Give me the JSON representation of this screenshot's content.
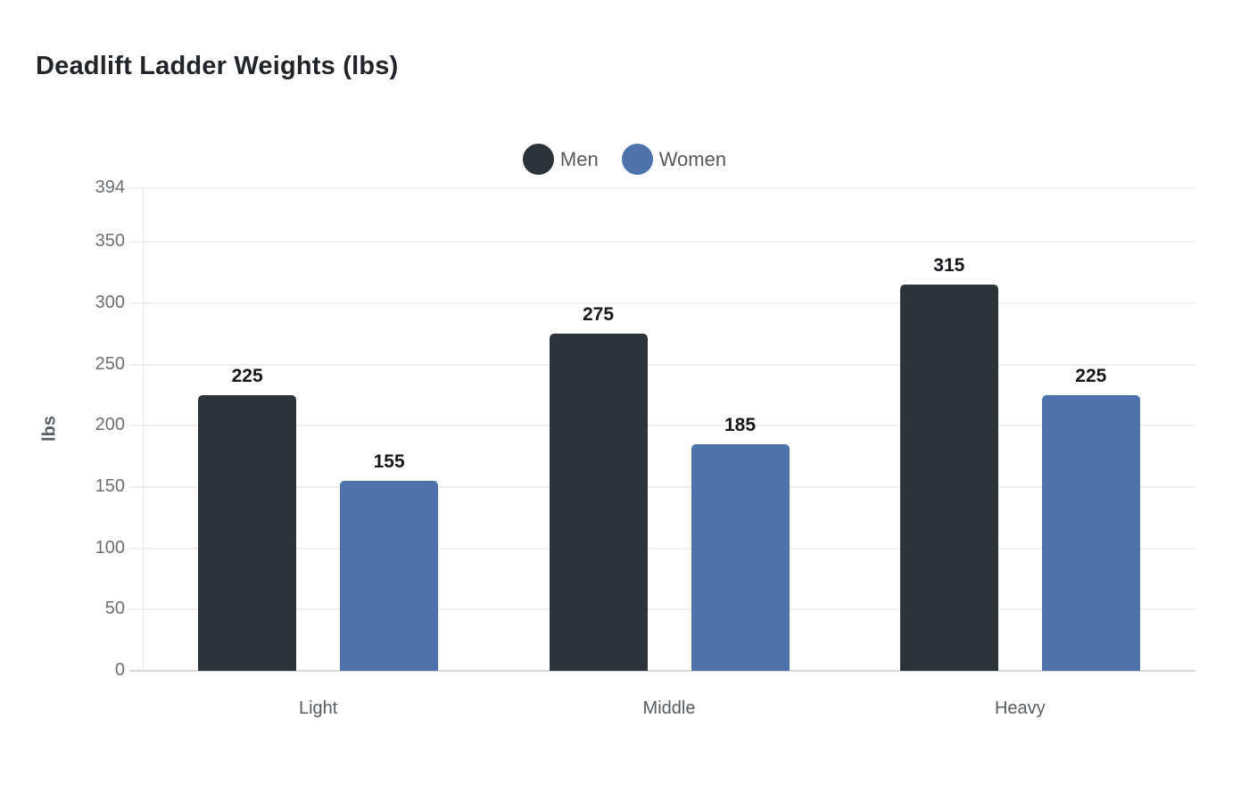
{
  "title": "Deadlift Ladder Weights (lbs)",
  "legend": {
    "items": [
      {
        "label": "Men",
        "color": "#2c343a"
      },
      {
        "label": "Women",
        "color": "#4d73ad"
      }
    ]
  },
  "colors": {
    "men_bar": "#2c343a",
    "women_bar": "#4d73ad",
    "gridline": "#efefef",
    "zero_line": "#d7d7d7",
    "tick_text": "#6b6f74",
    "value_text": "#15171a"
  },
  "chart_data": {
    "type": "bar",
    "title": "Deadlift Ladder Weights (lbs)",
    "categories": [
      "Light",
      "Middle",
      "Heavy"
    ],
    "series": [
      {
        "name": "Men",
        "color": "#2c343a",
        "values": [
          225,
          275,
          315
        ]
      },
      {
        "name": "Women",
        "color": "#4d73ad",
        "values": [
          155,
          185,
          225
        ]
      }
    ],
    "xlabel": "",
    "ylabel": "lbs",
    "ylim": [
      0,
      394
    ],
    "yticks": [
      0,
      50,
      100,
      150,
      200,
      250,
      300,
      350,
      394
    ],
    "grid": true,
    "legend_position": "top-center",
    "value_labels": true
  }
}
